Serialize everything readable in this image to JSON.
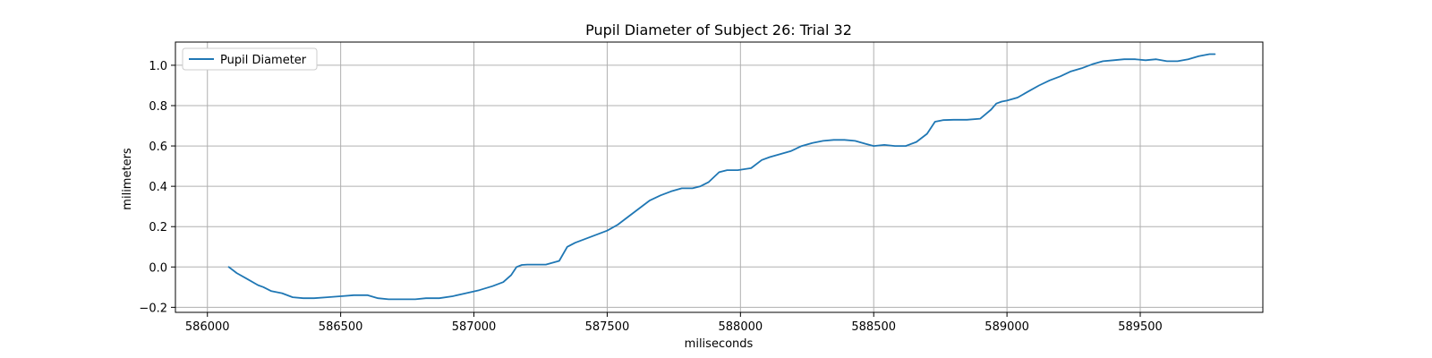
{
  "chart_data": {
    "type": "line",
    "title": "Pupil Diameter of Subject 26: Trial 32",
    "xlabel": "miliseconds",
    "ylabel": "milimeters",
    "xlim": [
      585880,
      589960
    ],
    "ylim": [
      -0.225,
      1.115
    ],
    "xticks": [
      586000,
      586500,
      587000,
      587500,
      588000,
      588500,
      589000,
      589500
    ],
    "yticks": [
      -0.2,
      0.0,
      0.2,
      0.4,
      0.6,
      0.8,
      1.0
    ],
    "xtick_labels": [
      "586000",
      "586500",
      "587000",
      "587500",
      "588000",
      "588500",
      "589000",
      "589500"
    ],
    "ytick_labels": [
      "−0.2",
      "0.0",
      "0.2",
      "0.4",
      "0.6",
      "0.8",
      "1.0"
    ],
    "grid": true,
    "legend": {
      "position": "top-left",
      "entries": [
        "Pupil Diameter"
      ]
    },
    "colors": {
      "series": "#1f77b4",
      "grid": "#b0b0b0"
    },
    "series": [
      {
        "name": "Pupil Diameter",
        "x": [
          586080,
          586110,
          586150,
          586190,
          586210,
          586240,
          586280,
          586320,
          586360,
          586400,
          586450,
          586500,
          586550,
          586600,
          586640,
          586680,
          586730,
          586780,
          586820,
          586870,
          586920,
          586970,
          587020,
          587070,
          587110,
          587140,
          587160,
          587180,
          587200,
          587230,
          587270,
          587320,
          587350,
          587380,
          587420,
          587460,
          587500,
          587540,
          587580,
          587620,
          587660,
          587700,
          587740,
          587780,
          587820,
          587850,
          587880,
          587920,
          587950,
          587990,
          588040,
          588080,
          588110,
          588150,
          588190,
          588230,
          588270,
          588310,
          588350,
          588390,
          588430,
          588470,
          588500,
          588540,
          588580,
          588620,
          588660,
          588700,
          588730,
          588760,
          588800,
          588850,
          588900,
          588940,
          588960,
          588980,
          589000,
          589040,
          589080,
          589120,
          589160,
          589200,
          589240,
          589280,
          589320,
          589360,
          589400,
          589440,
          589480,
          589520,
          589560,
          589600,
          589640,
          589680,
          589720,
          589760,
          589780
        ],
        "y": [
          0.0,
          -0.03,
          -0.06,
          -0.09,
          -0.1,
          -0.12,
          -0.13,
          -0.15,
          -0.155,
          -0.155,
          -0.15,
          -0.145,
          -0.14,
          -0.14,
          -0.155,
          -0.16,
          -0.16,
          -0.16,
          -0.155,
          -0.155,
          -0.145,
          -0.13,
          -0.115,
          -0.095,
          -0.075,
          -0.04,
          0.0,
          0.01,
          0.012,
          0.012,
          0.012,
          0.03,
          0.1,
          0.12,
          0.14,
          0.16,
          0.18,
          0.21,
          0.25,
          0.29,
          0.33,
          0.355,
          0.375,
          0.39,
          0.39,
          0.4,
          0.42,
          0.47,
          0.48,
          0.48,
          0.49,
          0.53,
          0.545,
          0.56,
          0.575,
          0.6,
          0.615,
          0.625,
          0.63,
          0.63,
          0.625,
          0.61,
          0.6,
          0.605,
          0.6,
          0.6,
          0.62,
          0.66,
          0.72,
          0.728,
          0.73,
          0.73,
          0.735,
          0.78,
          0.81,
          0.82,
          0.825,
          0.84,
          0.87,
          0.9,
          0.925,
          0.945,
          0.97,
          0.985,
          1.005,
          1.02,
          1.025,
          1.03,
          1.03,
          1.025,
          1.03,
          1.02,
          1.02,
          1.03,
          1.045,
          1.055,
          1.055
        ]
      }
    ]
  }
}
